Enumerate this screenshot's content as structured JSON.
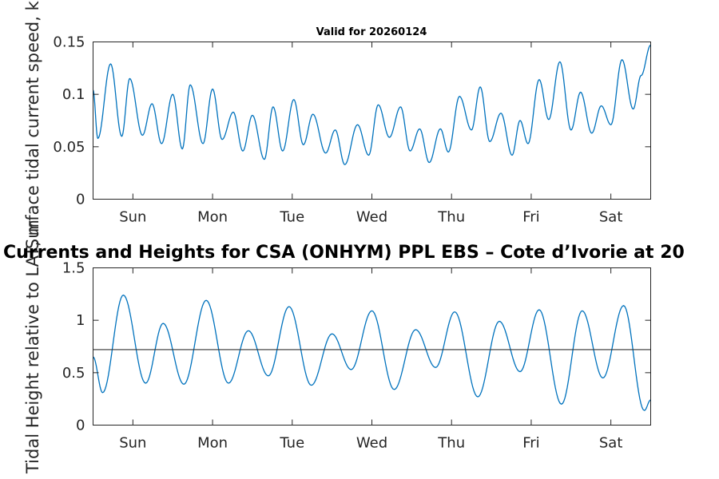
{
  "chart_data": [
    {
      "type": "line",
      "title": "Valid for 20260124",
      "xlabel": "",
      "ylabel": "Surface tidal current speed, kn",
      "yticks": [
        "0",
        "0.05",
        "0.1",
        "0.15"
      ],
      "ylim": [
        0,
        0.15
      ],
      "xlim": [
        0,
        7
      ],
      "xtick_positions": [
        0.5,
        1.5,
        2.5,
        3.5,
        4.5,
        5.5,
        6.5
      ],
      "xticks": [
        "Sun",
        "Mon",
        "Tue",
        "Wed",
        "Thu",
        "Fri",
        "Sat"
      ],
      "color": "#0072BD",
      "series": [
        {
          "name": "current speed",
          "x": [
            0.0,
            0.06,
            0.22,
            0.36,
            0.46,
            0.62,
            0.74,
            0.86,
            1.0,
            1.12,
            1.22,
            1.38,
            1.5,
            1.62,
            1.76,
            1.88,
            2.0,
            2.15,
            2.26,
            2.38,
            2.52,
            2.64,
            2.76,
            2.92,
            3.04,
            3.16,
            3.32,
            3.46,
            3.58,
            3.72,
            3.86,
            3.98,
            4.1,
            4.22,
            4.36,
            4.46,
            4.6,
            4.75,
            4.86,
            4.98,
            5.12,
            5.26,
            5.36,
            5.46,
            5.6,
            5.72,
            5.86,
            6.0,
            6.12,
            6.26,
            6.38,
            6.5,
            6.64,
            6.78,
            6.88,
            7.0
          ],
          "y": [
            0.104,
            0.058,
            0.129,
            0.06,
            0.115,
            0.061,
            0.091,
            0.053,
            0.1,
            0.048,
            0.109,
            0.053,
            0.105,
            0.057,
            0.083,
            0.046,
            0.08,
            0.038,
            0.088,
            0.046,
            0.095,
            0.052,
            0.081,
            0.044,
            0.066,
            0.033,
            0.071,
            0.042,
            0.09,
            0.059,
            0.088,
            0.046,
            0.067,
            0.035,
            0.067,
            0.045,
            0.098,
            0.066,
            0.107,
            0.055,
            0.082,
            0.042,
            0.075,
            0.053,
            0.114,
            0.076,
            0.131,
            0.066,
            0.102,
            0.063,
            0.089,
            0.071,
            0.133,
            0.086,
            0.118,
            0.147
          ]
        }
      ]
    },
    {
      "type": "line",
      "title": "Currents and Heights for CSA (ONHYM) PPL EBS  – Cote d’Ivorie at 20",
      "xlabel": "",
      "ylabel": "Tidal Height relative to LAT, m",
      "yticks": [
        "0",
        "0.5",
        "1",
        "1.5"
      ],
      "ylim": [
        0,
        1.5
      ],
      "xlim": [
        0,
        7
      ],
      "xtick_positions": [
        0.5,
        1.5,
        2.5,
        3.5,
        4.5,
        5.5,
        6.5
      ],
      "xticks": [
        "Sun",
        "Mon",
        "Tue",
        "Wed",
        "Thu",
        "Fri",
        "Sat"
      ],
      "reference_line": 0.72,
      "color": "#0072BD",
      "series": [
        {
          "name": "tidal height",
          "x": [
            0.0,
            0.12,
            0.38,
            0.66,
            0.88,
            1.14,
            1.42,
            1.7,
            1.95,
            2.2,
            2.46,
            2.74,
            3.0,
            3.24,
            3.5,
            3.78,
            4.05,
            4.3,
            4.54,
            4.83,
            5.1,
            5.36,
            5.6,
            5.88,
            6.14,
            6.4,
            6.66,
            6.92,
            7.0
          ],
          "y": [
            0.65,
            0.31,
            1.24,
            0.4,
            0.97,
            0.39,
            1.19,
            0.4,
            0.9,
            0.47,
            1.13,
            0.38,
            0.87,
            0.53,
            1.09,
            0.34,
            0.91,
            0.55,
            1.08,
            0.27,
            0.99,
            0.51,
            1.1,
            0.2,
            1.09,
            0.45,
            1.14,
            0.14,
            0.24
          ]
        }
      ]
    }
  ]
}
